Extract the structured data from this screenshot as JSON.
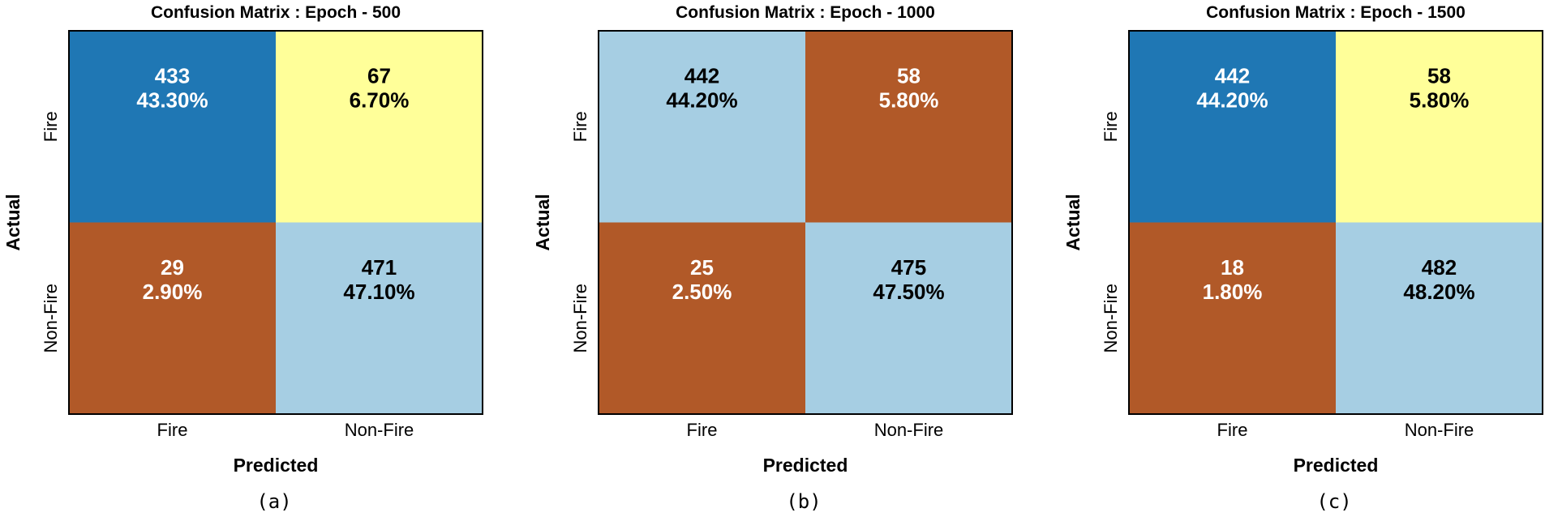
{
  "chart_data": [
    {
      "type": "heatmap",
      "title": "Confusion Matrix : Epoch - 500",
      "xlabel": "Predicted",
      "ylabel": "Actual",
      "x_categories": [
        "Fire",
        "Non-Fire"
      ],
      "y_categories": [
        "Fire",
        "Non-Fire"
      ],
      "cells": [
        [
          {
            "count": "433",
            "percent": "43.30%",
            "color": "#1f77b4",
            "text_color": "#ffffff"
          },
          {
            "count": "67",
            "percent": "6.70%",
            "color": "#ffff99",
            "text_color": "#000000"
          }
        ],
        [
          {
            "count": "29",
            "percent": "2.90%",
            "color": "#b15928",
            "text_color": "#ffffff"
          },
          {
            "count": "471",
            "percent": "47.10%",
            "color": "#a6cee3",
            "text_color": "#000000"
          }
        ]
      ],
      "sublabel": "(a)"
    },
    {
      "type": "heatmap",
      "title": "Confusion Matrix : Epoch - 1000",
      "xlabel": "Predicted",
      "ylabel": "Actual",
      "x_categories": [
        "Fire",
        "Non-Fire"
      ],
      "y_categories": [
        "Fire",
        "Non-Fire"
      ],
      "cells": [
        [
          {
            "count": "442",
            "percent": "44.20%",
            "color": "#a6cee3",
            "text_color": "#000000"
          },
          {
            "count": "58",
            "percent": "5.80%",
            "color": "#b15928",
            "text_color": "#ffffff"
          }
        ],
        [
          {
            "count": "25",
            "percent": "2.50%",
            "color": "#b15928",
            "text_color": "#ffffff"
          },
          {
            "count": "475",
            "percent": "47.50%",
            "color": "#a6cee3",
            "text_color": "#000000"
          }
        ]
      ],
      "sublabel": "(b)"
    },
    {
      "type": "heatmap",
      "title": "Confusion Matrix : Epoch - 1500",
      "xlabel": "Predicted",
      "ylabel": "Actual",
      "x_categories": [
        "Fire",
        "Non-Fire"
      ],
      "y_categories": [
        "Fire",
        "Non-Fire"
      ],
      "cells": [
        [
          {
            "count": "442",
            "percent": "44.20%",
            "color": "#1f77b4",
            "text_color": "#ffffff"
          },
          {
            "count": "58",
            "percent": "5.80%",
            "color": "#ffff99",
            "text_color": "#000000"
          }
        ],
        [
          {
            "count": "18",
            "percent": "1.80%",
            "color": "#b15928",
            "text_color": "#ffffff"
          },
          {
            "count": "482",
            "percent": "48.20%",
            "color": "#a6cee3",
            "text_color": "#000000"
          }
        ]
      ],
      "sublabel": "(c)"
    }
  ]
}
